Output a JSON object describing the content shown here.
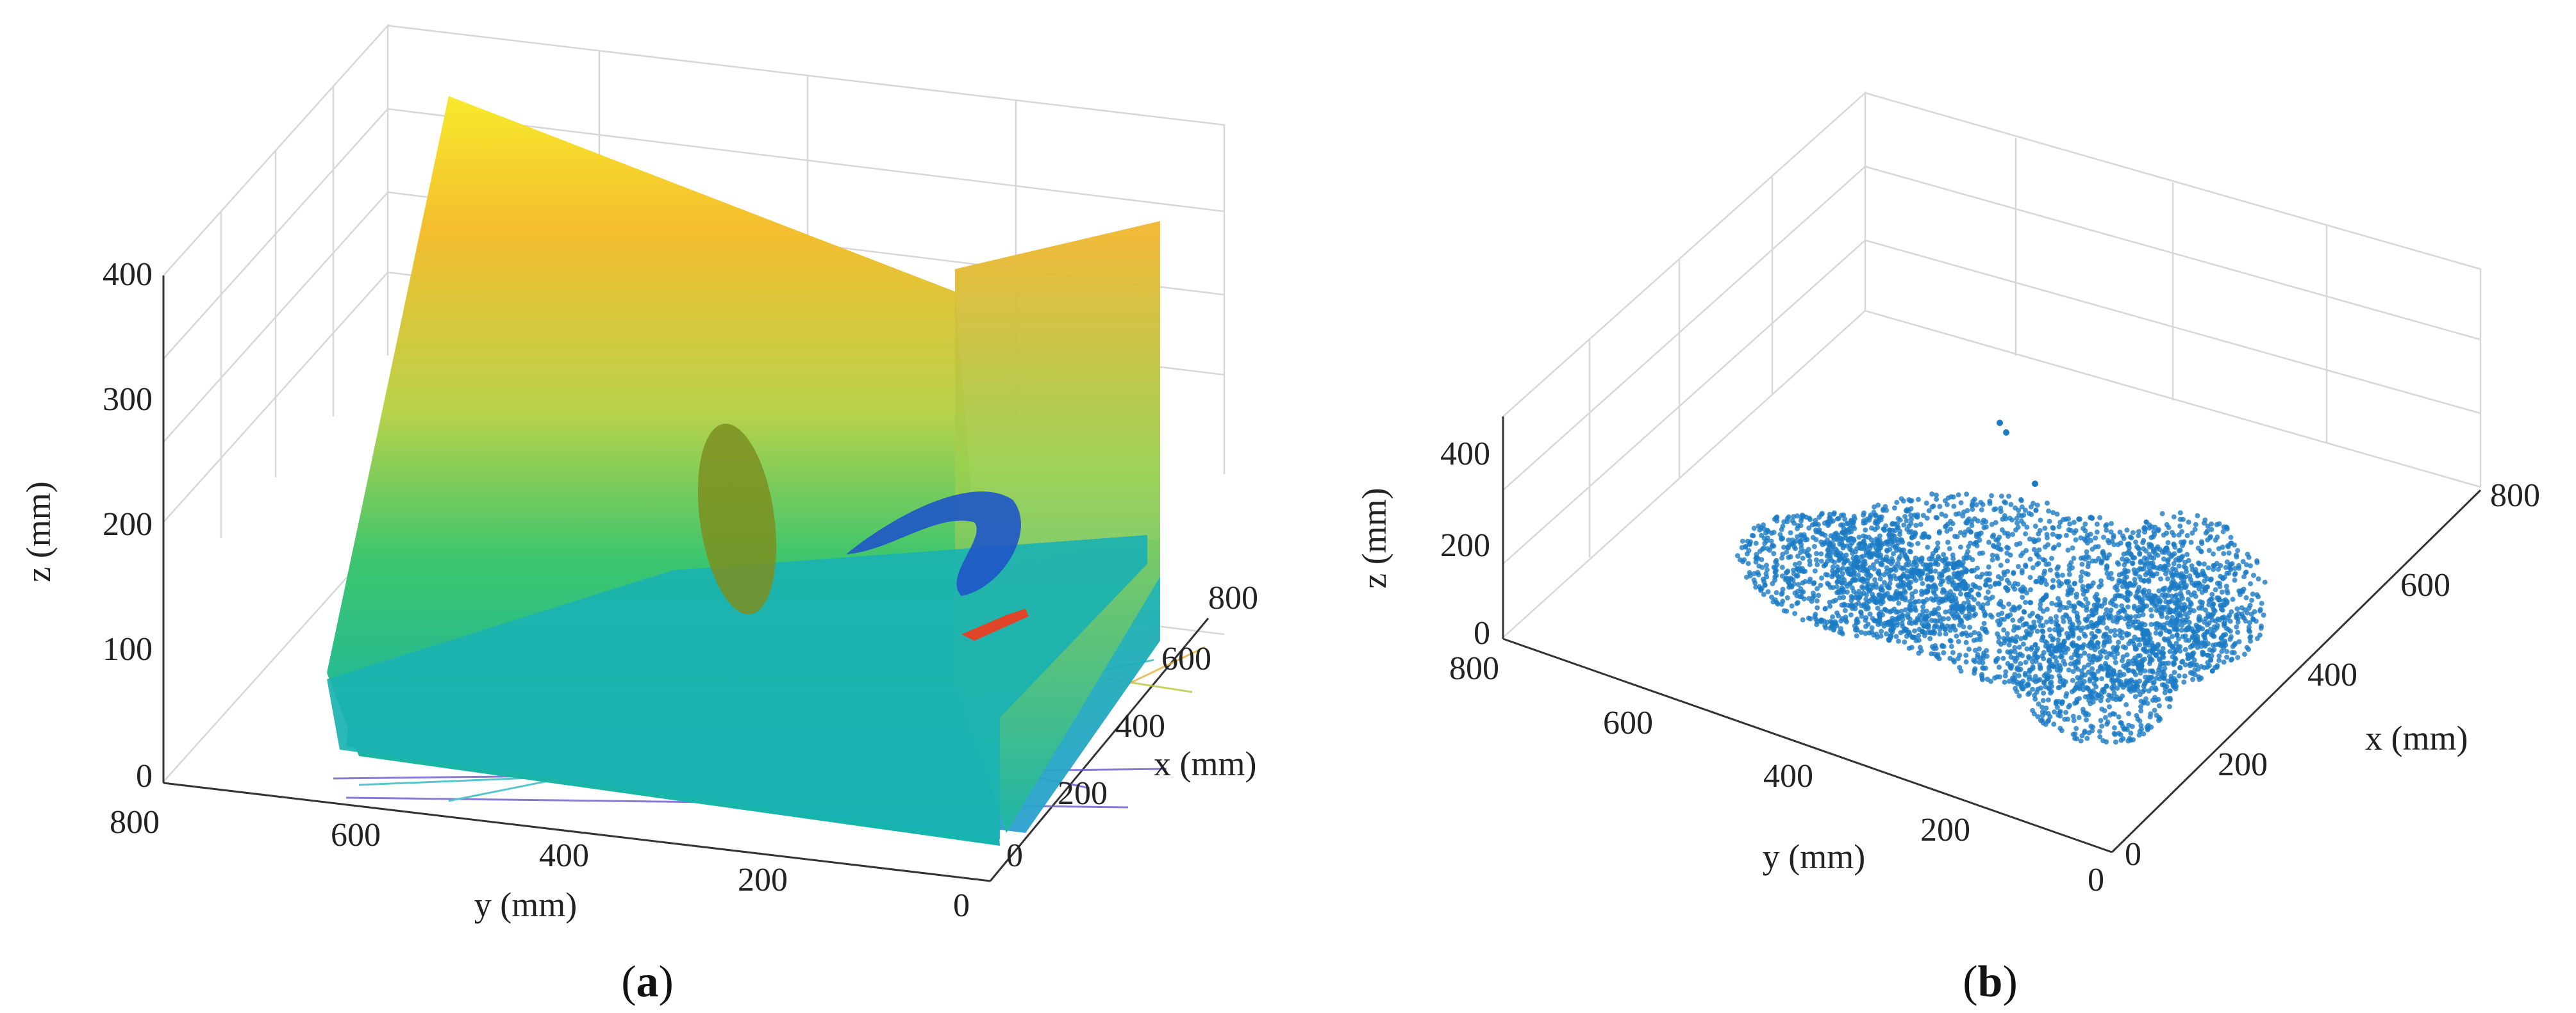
{
  "chart_data": [
    {
      "panel": "a",
      "type": "scatter",
      "caption": {
        "open": "(",
        "letter": "a",
        "close": ")"
      },
      "xlabel": "x (mm)",
      "ylabel": "y (mm)",
      "zlabel": "z (mm)",
      "xlim": [
        0,
        800
      ],
      "ylim": [
        0,
        800
      ],
      "zlim": [
        0,
        400
      ],
      "x_ticks": [
        "0",
        "200",
        "400",
        "600",
        "800"
      ],
      "y_ticks": [
        "800",
        "600",
        "400",
        "200",
        "0"
      ],
      "z_ticks": [
        "0",
        "100",
        "200",
        "300",
        "400"
      ],
      "grid": true,
      "colors": {
        "plane_high": "#f5e52a",
        "plane_mid": "#31c07a",
        "plane_low": "#2a9fd0",
        "blue_cluster": "#1f55c8",
        "olive_cluster": "#7b8e1f",
        "red_cluster": "#e0452a"
      }
    },
    {
      "panel": "b",
      "type": "scatter",
      "caption": {
        "open": "(",
        "letter": "b",
        "close": ")"
      },
      "xlabel": "x (mm)",
      "ylabel": "y (mm)",
      "zlabel": "z (mm)",
      "xlim": [
        0,
        800
      ],
      "ylim": [
        0,
        800
      ],
      "zlim": [
        0,
        400
      ],
      "x_ticks": [
        "0",
        "200",
        "400",
        "600",
        "800"
      ],
      "y_ticks": [
        "800",
        "600",
        "400",
        "200",
        "0"
      ],
      "z_ticks": [
        "0",
        "200",
        "400"
      ],
      "grid": true,
      "colors": {
        "points": "#1a7ac4"
      }
    }
  ]
}
